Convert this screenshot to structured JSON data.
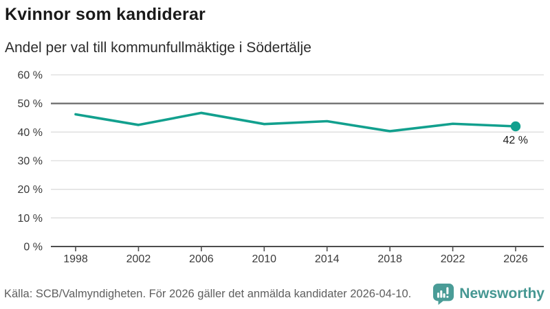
{
  "header": {
    "title": "Kvinnor som kandiderar",
    "subtitle": "Andel per val till kommunfullmäktige i Södertälje"
  },
  "chart_data": {
    "type": "line",
    "title": "Kvinnor som kandiderar",
    "subtitle": "Andel per val till kommunfullmäktige i Södertälje",
    "categories": [
      "1998",
      "2002",
      "2006",
      "2010",
      "2014",
      "2018",
      "2022",
      "2026"
    ],
    "values": [
      46.2,
      42.5,
      46.7,
      42.8,
      43.8,
      40.3,
      42.9,
      42
    ],
    "xlabel": "",
    "ylabel": "",
    "ylim": [
      0,
      60
    ],
    "ytick_step": 10,
    "ytick_suffix": " %",
    "reference_line": 50,
    "end_label": "42 %",
    "grid": true,
    "legend": "none",
    "colors": {
      "line": "#12a08e",
      "marker": "#12a08e",
      "gridline": "#dcdcdc",
      "reference_line": "#707070",
      "axis": "#4d4d4d"
    }
  },
  "footer": {
    "source": "Källa: SCB/Valmyndigheten. För 2026 gäller det anmälda kandidater 2026-04-10.",
    "brand": "Newsworthy",
    "brand_color": "#459792",
    "brand_icon": "newsworthy-speech-bubble-chart-icon"
  }
}
